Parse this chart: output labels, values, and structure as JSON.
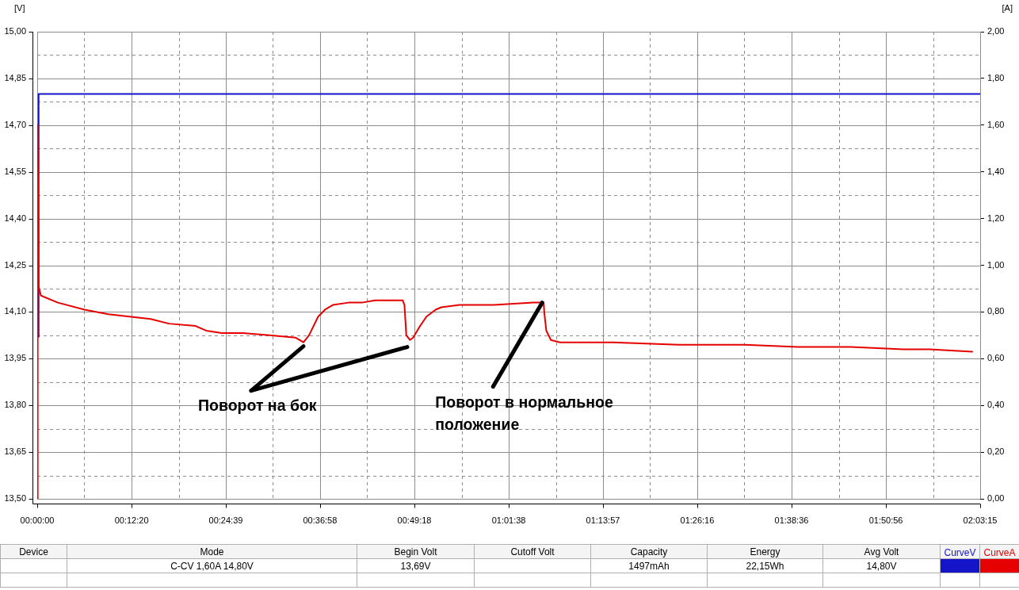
{
  "chart_data": {
    "type": "line",
    "ylabel": "[V]",
    "y2label": "[A]",
    "xlim": [
      0,
      2.0542
    ],
    "xticks": [
      {
        "value": 0,
        "label": "00:00:00"
      },
      {
        "value": 0.1027,
        "label": null
      },
      {
        "value": 0.2056,
        "label": "00:12:20"
      },
      {
        "value": 0.3082,
        "label": null
      },
      {
        "value": 0.4108,
        "label": "00:24:39"
      },
      {
        "value": 0.5135,
        "label": null
      },
      {
        "value": 0.6161,
        "label": "00:36:58"
      },
      {
        "value": 0.7189,
        "label": null
      },
      {
        "value": 0.8217,
        "label": "00:49:18"
      },
      {
        "value": 0.9244,
        "label": null
      },
      {
        "value": 1.0272,
        "label": "01:01:38"
      },
      {
        "value": 1.1299,
        "label": null
      },
      {
        "value": 1.2325,
        "label": "01:13:57"
      },
      {
        "value": 1.3351,
        "label": null
      },
      {
        "value": 1.4378,
        "label": "01:26:16"
      },
      {
        "value": 1.5406,
        "label": null
      },
      {
        "value": 1.6433,
        "label": "01:38:36"
      },
      {
        "value": 1.7461,
        "label": null
      },
      {
        "value": 1.8489,
        "label": "01:50:56"
      },
      {
        "value": 1.9515,
        "label": null
      },
      {
        "value": 2.0542,
        "label": "02:03:15"
      }
    ],
    "ylim": [
      13.5,
      15.0
    ],
    "yticks": [
      {
        "value": 13.5,
        "label": "13,50"
      },
      {
        "value": 13.575,
        "label": null
      },
      {
        "value": 13.65,
        "label": "13,65"
      },
      {
        "value": 13.725,
        "label": null
      },
      {
        "value": 13.8,
        "label": "13,80"
      },
      {
        "value": 13.875,
        "label": null
      },
      {
        "value": 13.95,
        "label": "13,95"
      },
      {
        "value": 14.025,
        "label": null
      },
      {
        "value": 14.1,
        "label": "14,10"
      },
      {
        "value": 14.175,
        "label": null
      },
      {
        "value": 14.25,
        "label": "14,25"
      },
      {
        "value": 14.325,
        "label": null
      },
      {
        "value": 14.4,
        "label": "14,40"
      },
      {
        "value": 14.475,
        "label": null
      },
      {
        "value": 14.55,
        "label": "14,55"
      },
      {
        "value": 14.625,
        "label": null
      },
      {
        "value": 14.7,
        "label": "14,70"
      },
      {
        "value": 14.775,
        "label": null
      },
      {
        "value": 14.85,
        "label": "14,85"
      },
      {
        "value": 14.925,
        "label": null
      },
      {
        "value": 15.0,
        "label": "15,00"
      }
    ],
    "y2lim": [
      0,
      2.0
    ],
    "y2ticks": [
      {
        "value": 0,
        "label": "0,00"
      },
      {
        "value": 0.1,
        "label": null
      },
      {
        "value": 0.2,
        "label": "0,20"
      },
      {
        "value": 0.3,
        "label": null
      },
      {
        "value": 0.4,
        "label": "0,40"
      },
      {
        "value": 0.5,
        "label": null
      },
      {
        "value": 0.6,
        "label": "0,60"
      },
      {
        "value": 0.7,
        "label": null
      },
      {
        "value": 0.8,
        "label": "0,80"
      },
      {
        "value": 0.9,
        "label": null
      },
      {
        "value": 1.0,
        "label": "1,00"
      },
      {
        "value": 1.1,
        "label": null
      },
      {
        "value": 1.2,
        "label": "1,20"
      },
      {
        "value": 1.3,
        "label": null
      },
      {
        "value": 1.4,
        "label": "1,40"
      },
      {
        "value": 1.5,
        "label": null
      },
      {
        "value": 1.6,
        "label": "1,60"
      },
      {
        "value": 1.7,
        "label": null
      },
      {
        "value": 1.8,
        "label": "1,80"
      },
      {
        "value": 1.9,
        "label": null
      },
      {
        "value": 2.0,
        "label": "2,00"
      }
    ],
    "series": [
      {
        "name": "CurveV",
        "color": "#1414c8",
        "x": [
          0.003,
          0.003,
          0.25,
          0.5,
          0.75,
          1.0,
          1.25,
          1.5,
          1.75,
          2.0,
          2.054
        ],
        "values": [
          14.02,
          14.8,
          14.8,
          14.8,
          14.8,
          14.8,
          14.8,
          14.8,
          14.8,
          14.8,
          14.8
        ]
      },
      {
        "name": "CurveA",
        "color": "#e60000",
        "axis": "y2",
        "x": [
          0,
          0.001,
          0.003,
          0.008,
          0.045,
          0.103,
          0.155,
          0.201,
          0.247,
          0.287,
          0.345,
          0.368,
          0.402,
          0.448,
          0.506,
          0.563,
          0.58,
          0.592,
          0.612,
          0.627,
          0.644,
          0.678,
          0.707,
          0.736,
          0.796,
          0.8,
          0.804,
          0.812,
          0.819,
          0.834,
          0.848,
          0.868,
          0.88,
          0.92,
          0.995,
          1.081,
          1.103,
          1.105,
          1.109,
          1.119,
          1.139,
          1.254,
          1.398,
          1.455,
          1.541,
          1.657,
          1.772,
          1.887,
          1.944,
          2.037
        ],
        "values": [
          0,
          1.6,
          0.91,
          0.87,
          0.84,
          0.81,
          0.79,
          0.78,
          0.77,
          0.75,
          0.74,
          0.72,
          0.71,
          0.71,
          0.7,
          0.69,
          0.67,
          0.7,
          0.78,
          0.81,
          0.83,
          0.84,
          0.84,
          0.85,
          0.85,
          0.83,
          0.7,
          0.68,
          0.69,
          0.74,
          0.78,
          0.81,
          0.82,
          0.83,
          0.83,
          0.84,
          0.84,
          0.79,
          0.72,
          0.68,
          0.67,
          0.67,
          0.66,
          0.66,
          0.66,
          0.65,
          0.65,
          0.64,
          0.64,
          0.63
        ]
      }
    ],
    "annotations": [
      {
        "text": "Поворот на бок",
        "x": 0.58,
        "y": 13.99
      },
      {
        "text": "Поворот в нормальное положение",
        "x": 1.1,
        "y": 14.13
      },
      "Device",
      "Mode",
      "Begin Volt",
      "Cutoff Volt",
      "Capacity",
      "Energy",
      "Avg Volt",
      "C-CV 1,60A 14,80V",
      "13,69V",
      "1497mAh",
      "22,15Wh",
      "14,80V"
    ],
    "grid": true,
    "legend": "bottom right"
  }
}
